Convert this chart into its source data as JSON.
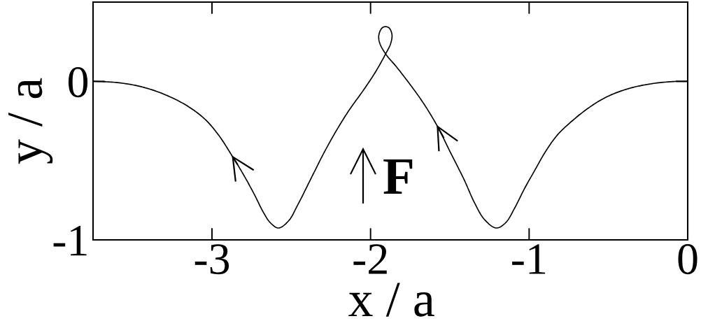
{
  "chart_data": {
    "type": "line",
    "xlabel": "x / a",
    "ylabel": "y / a",
    "xlim": [
      -3.75,
      0
    ],
    "ylim": [
      -1,
      0.5
    ],
    "xticks": [
      -3,
      -2,
      -1,
      0
    ],
    "yticks": [
      -1,
      0
    ],
    "line_style": "solid",
    "annotations": [
      "F"
    ],
    "series": [
      {
        "color": "#000000",
        "x": [
          0,
          -0.088,
          -0.235,
          -0.381,
          -0.515,
          -0.633,
          -0.751,
          -0.825,
          -0.898,
          -0.957,
          -1.031,
          -1.09,
          -1.149,
          -1.208,
          -1.282,
          -1.344,
          -1.411,
          -1.493,
          -1.583,
          -1.673,
          -1.755,
          -1.837,
          -1.905,
          -1.944,
          -1.947,
          -1.927,
          -1.906,
          -1.883,
          -1.865,
          -1.873,
          -1.905,
          -1.969,
          -2.05,
          -2.132,
          -2.214,
          -2.296,
          -2.378,
          -2.46,
          -2.516,
          -2.58,
          -2.631,
          -2.676,
          -2.735,
          -2.808,
          -2.875,
          -2.956,
          -3.044,
          -3.162,
          -3.31,
          -3.457,
          -3.605,
          -3.75
        ],
        "values": [
          0,
          -0.001,
          -0.016,
          -0.048,
          -0.1,
          -0.173,
          -0.269,
          -0.342,
          -0.445,
          -0.548,
          -0.68,
          -0.797,
          -0.893,
          -0.925,
          -0.871,
          -0.767,
          -0.618,
          -0.455,
          -0.275,
          -0.128,
          -0.014,
          0.092,
          0.173,
          0.247,
          0.296,
          0.337,
          0.345,
          0.337,
          0.296,
          0.239,
          0.173,
          0.059,
          -0.063,
          -0.177,
          -0.308,
          -0.455,
          -0.618,
          -0.781,
          -0.879,
          -0.925,
          -0.893,
          -0.826,
          -0.709,
          -0.577,
          -0.467,
          -0.342,
          -0.239,
          -0.151,
          -0.078,
          -0.031,
          -0.007,
          0
        ]
      }
    ]
  }
}
